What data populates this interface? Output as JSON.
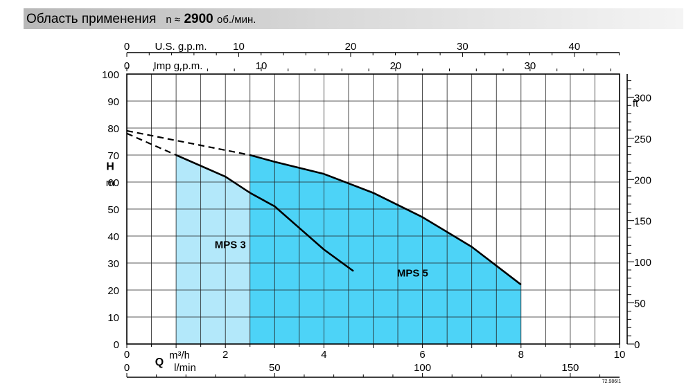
{
  "header": {
    "title": "Область применения",
    "speed_label": "n ≈",
    "speed_value": "2900",
    "speed_unit": "об./мин."
  },
  "chart_data": {
    "type": "area",
    "title": "Область применения n ≈ 2900 об./мин.",
    "xlabel": "Q",
    "ylabel": "H",
    "y_unit": "m",
    "xlim": [
      0,
      10
    ],
    "ylim": [
      0,
      100
    ],
    "grid": true,
    "x_axes": {
      "m3h": {
        "unit": "m³/h",
        "ticks": [
          0,
          2,
          4,
          6,
          8,
          10
        ]
      },
      "lmin": {
        "unit": "l/min",
        "ticks": [
          0,
          50,
          100,
          150
        ]
      },
      "us_gpm": {
        "unit": "U.S. g.p.m.",
        "ticks": [
          0,
          10,
          20,
          30,
          40
        ]
      },
      "imp_gpm": {
        "unit": "Imp g.p.m.",
        "ticks": [
          0,
          10,
          20,
          30
        ]
      }
    },
    "y_axes": {
      "m": {
        "unit": "m",
        "ticks": [
          0,
          10,
          20,
          30,
          40,
          50,
          60,
          70,
          80,
          90,
          100
        ]
      },
      "ft": {
        "unit": "ft",
        "ticks": [
          0,
          50,
          100,
          150,
          200,
          250,
          300
        ]
      }
    },
    "series": [
      {
        "name": "MPS 3",
        "color": "#b3e8fa",
        "q_range": [
          1.0,
          4.6
        ],
        "curve": [
          [
            1.0,
            70
          ],
          [
            2.0,
            62
          ],
          [
            2.5,
            56
          ],
          [
            3.0,
            51
          ],
          [
            3.5,
            43
          ],
          [
            4.0,
            35
          ],
          [
            4.6,
            27
          ]
        ],
        "dashed_extension": [
          [
            0.0,
            78
          ],
          [
            1.0,
            70
          ]
        ]
      },
      {
        "name": "MPS 5",
        "color": "#4dd3f7",
        "q_range": [
          2.5,
          8.0
        ],
        "curve": [
          [
            2.5,
            70
          ],
          [
            3.0,
            67.5
          ],
          [
            4.0,
            63
          ],
          [
            5.0,
            56
          ],
          [
            6.0,
            47
          ],
          [
            7.0,
            36
          ],
          [
            8.0,
            22
          ]
        ],
        "dashed_extension": [
          [
            0.0,
            79
          ],
          [
            2.5,
            70
          ]
        ]
      }
    ],
    "annotations": [
      "MPS 3",
      "MPS 5"
    ],
    "figure_code": "72.986/1"
  }
}
